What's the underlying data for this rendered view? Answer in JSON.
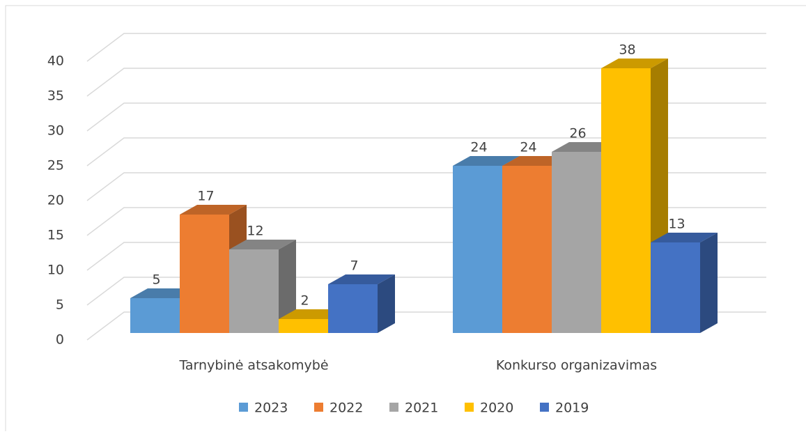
{
  "chart_data": {
    "type": "bar3d",
    "categories": [
      "Tarnybinė atsakomybė",
      "Konkurso organizavimas"
    ],
    "series": [
      {
        "name": "2023",
        "color": "#5b9bd5",
        "values": [
          5,
          24
        ]
      },
      {
        "name": "2022",
        "color": "#ed7d31",
        "values": [
          17,
          24
        ]
      },
      {
        "name": "2021",
        "color": "#a5a5a5",
        "values": [
          12,
          26
        ]
      },
      {
        "name": "2020",
        "color": "#ffc000",
        "values": [
          2,
          38
        ]
      },
      {
        "name": "2019",
        "color": "#4472c4",
        "values": [
          7,
          13
        ]
      }
    ],
    "ylim": [
      0,
      40
    ],
    "yticks": [
      0,
      5,
      10,
      15,
      20,
      25,
      30,
      35,
      40
    ],
    "grid": true,
    "legend": "bottom"
  }
}
